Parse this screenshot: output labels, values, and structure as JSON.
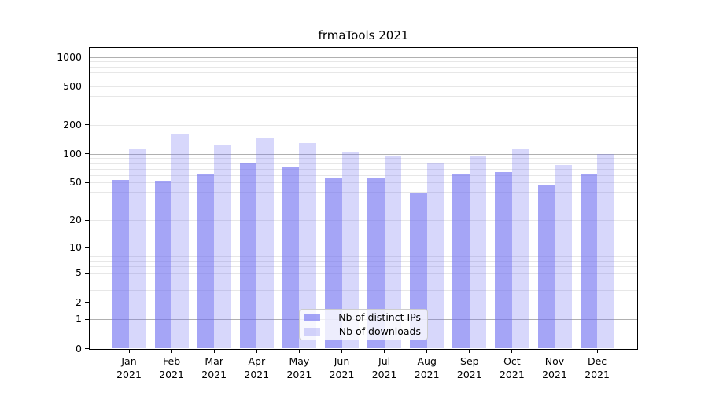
{
  "chart_data": {
    "type": "bar",
    "title": "frmaTools 2021",
    "categories": [
      "Jan 2021",
      "Feb 2021",
      "Mar 2021",
      "Apr 2021",
      "May 2021",
      "Jun 2021",
      "Jul 2021",
      "Aug 2021",
      "Sep 2021",
      "Oct 2021",
      "Nov 2021",
      "Dec 2021"
    ],
    "month_labels": [
      "Jan",
      "Feb",
      "Mar",
      "Apr",
      "May",
      "Jun",
      "Jul",
      "Aug",
      "Sep",
      "Oct",
      "Nov",
      "Dec"
    ],
    "year_label": "2021",
    "series": [
      {
        "name": "Nb of distinct IPs",
        "color": "#a9a9f4",
        "fill_rgba": "rgba(110,110,240,0.62)",
        "values": [
          53,
          52,
          62,
          79,
          73,
          57,
          56,
          39,
          61,
          65,
          47,
          62
        ]
      },
      {
        "name": "Nb of downloads",
        "color": "#d8d8f8",
        "fill_rgba": "rgba(110,110,240,0.28)",
        "values": [
          112,
          158,
          123,
          144,
          130,
          105,
          96,
          79,
          95,
          111,
          76,
          100
        ]
      }
    ],
    "y_scale": "log10(1+v)",
    "y_ticks": [
      0,
      1,
      2,
      5,
      10,
      20,
      50,
      100,
      200,
      500,
      1000
    ],
    "ylim": [
      0,
      1250
    ],
    "xlabel": "",
    "ylabel": "",
    "grid": "on",
    "legend_position": "lower center"
  },
  "colors": {
    "major_grid": "#b0b0b0",
    "minor_grid": "#e7e7e7",
    "axis": "#000000",
    "text": "#000000",
    "legend_border": "#cccccc"
  }
}
